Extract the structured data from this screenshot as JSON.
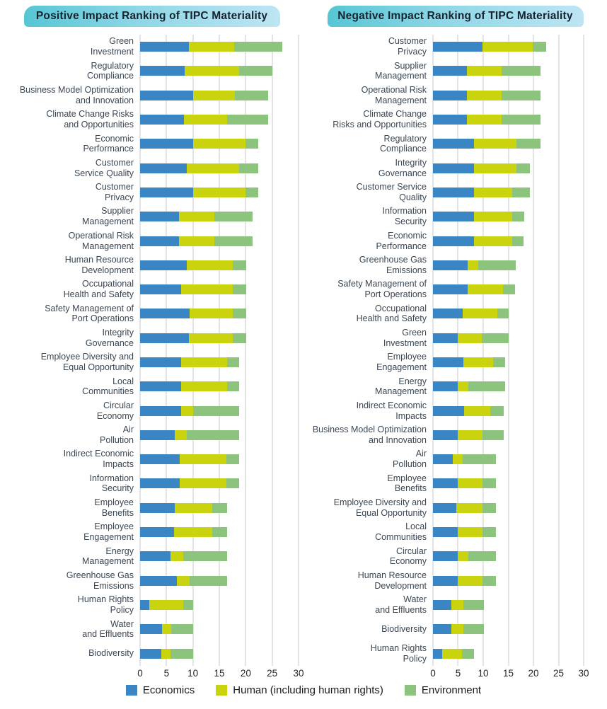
{
  "style": {
    "title_gradient_start": "#56C6D4",
    "title_gradient_end": "#BEE5F3",
    "title_text_color": "#14232F",
    "grid_color": "#CACACA",
    "label_color": "#3B4754",
    "axis_color": "#242424",
    "background": "#FFFFFF"
  },
  "chart_data": [
    {
      "type": "bar",
      "orientation": "horizontal",
      "stacked": true,
      "grid": true,
      "legend_position": "bottom",
      "title": "Positive Impact Ranking of TIPC Materiality",
      "xlim": [
        0,
        30
      ],
      "xticks": [
        0,
        5,
        10,
        15,
        20,
        25,
        30
      ],
      "categories": [
        "Green Investment",
        "Regulatory Compliance",
        "Business Model Optimization and Innovation",
        "Climate Change Risks and Opportunities",
        "Economic Performance",
        "Customer Service Quality",
        "Customer Privacy",
        "Supplier Management",
        "Operational Risk Management",
        "Human Resource Development",
        "Occupational Health and Safety",
        "Safety Management of Port Operations",
        "Integrity Governance",
        "Employee Diversity and Equal Opportunity",
        "Local Communities",
        "Circular Economy",
        "Air Pollution",
        "Indirect Economic Impacts",
        "Information Security",
        "Employee Benefits",
        "Employee Engagement",
        "Energy Management",
        "Greenhouse Gas Emissions",
        "Human Rights Policy",
        "Water and Effluents",
        "Biodiversity"
      ],
      "category_lines": [
        [
          "Green",
          "Investment"
        ],
        [
          "Regulatory",
          "Compliance"
        ],
        [
          "Business Model Optimization",
          "and Innovation"
        ],
        [
          "Climate Change Risks",
          "and Opportunities"
        ],
        [
          "Economic",
          "Performance"
        ],
        [
          "Customer",
          "Service Quality"
        ],
        [
          "Customer",
          "Privacy"
        ],
        [
          "Supplier",
          "Management"
        ],
        [
          "Operational Risk",
          "Management"
        ],
        [
          "Human Resource",
          "Development"
        ],
        [
          "Occupational",
          "Health and Safety"
        ],
        [
          "Safety Management of",
          "Port Operations"
        ],
        [
          "Integrity",
          "Governance"
        ],
        [
          "Employee Diversity and",
          "Equal Opportunity"
        ],
        [
          "Local",
          "Communities"
        ],
        [
          "Circular",
          "Economy"
        ],
        [
          "Air",
          "Pollution"
        ],
        [
          "Indirect Economic",
          "Impacts"
        ],
        [
          "Information",
          "Security"
        ],
        [
          "Employee",
          "Benefits"
        ],
        [
          "Employee",
          "Engagement"
        ],
        [
          "Energy",
          "Management"
        ],
        [
          "Greenhouse Gas",
          "Emissions"
        ],
        [
          "Human Rights",
          "Policy"
        ],
        [
          "Water",
          "and Effluents"
        ],
        [
          "Biodiversity"
        ]
      ],
      "series": [
        {
          "name": "Economics",
          "color": "#3A86C4",
          "values": [
            9.3,
            8.5,
            10.0,
            8.3,
            10.0,
            8.9,
            10.0,
            7.3,
            7.3,
            8.9,
            7.8,
            9.4,
            9.2,
            7.8,
            7.8,
            7.8,
            6.6,
            7.5,
            7.5,
            6.5,
            6.4,
            5.7,
            6.9,
            1.7,
            4.1,
            4.0
          ]
        },
        {
          "name": "Human (including human rights)",
          "color": "#C9D40E",
          "values": [
            8.5,
            10.2,
            7.9,
            8.2,
            10.0,
            9.8,
            10.0,
            6.7,
            6.7,
            8.7,
            9.8,
            8.2,
            8.4,
            8.7,
            8.7,
            2.2,
            2.3,
            8.8,
            8.8,
            7.2,
            7.3,
            2.5,
            2.5,
            6.5,
            1.8,
            1.8
          ]
        },
        {
          "name": "Environment",
          "color": "#8CC47D",
          "values": [
            9.1,
            6.4,
            6.3,
            7.8,
            2.4,
            3.7,
            2.4,
            7.3,
            7.3,
            2.5,
            2.5,
            2.5,
            2.5,
            2.3,
            2.3,
            8.8,
            9.9,
            2.5,
            2.5,
            2.8,
            2.8,
            8.3,
            7.1,
            1.9,
            4.2,
            4.3
          ]
        }
      ]
    },
    {
      "type": "bar",
      "orientation": "horizontal",
      "stacked": true,
      "grid": true,
      "legend_position": "bottom",
      "title": "Negative Impact Ranking of TIPC Materiality",
      "xlim": [
        0,
        30
      ],
      "xticks": [
        0,
        5,
        10,
        15,
        20,
        25,
        30
      ],
      "categories": [
        "Customer Privacy",
        "Supplier Management",
        "Operational Risk Management",
        "Climate Change Risks and Opportunities",
        "Regulatory Compliance",
        "Integrity Governance",
        "Customer Service Quality",
        "Information Security",
        "Economic Performance",
        "Greenhouse Gas Emissions",
        "Safety Management of Port Operations",
        "Occupational Health and Safety",
        "Green Investment",
        "Employee Engagement",
        "Energy Management",
        "Indirect Economic Impacts",
        "Business Model Optimization and Innovation",
        "Air Pollution",
        "Employee Benefits",
        "Employee Diversity and Equal Opportunity",
        "Local Communities",
        "Circular Economy",
        "Human Resource Development",
        "Water and Effluents",
        "Biodiversity",
        "Human Rights Policy"
      ],
      "category_lines": [
        [
          "Customer",
          "Privacy"
        ],
        [
          "Supplier",
          "Management"
        ],
        [
          "Operational Risk",
          "Management"
        ],
        [
          "Climate Change",
          "Risks and Opportunities"
        ],
        [
          "Regulatory",
          "Compliance"
        ],
        [
          "Integrity",
          "Governance"
        ],
        [
          "Customer Service",
          "Quality"
        ],
        [
          "Information",
          "Security"
        ],
        [
          "Economic",
          "Performance"
        ],
        [
          "Greenhouse Gas",
          "Emissions"
        ],
        [
          "Safety Management of",
          "Port Operations"
        ],
        [
          "Occupational",
          "Health and Safety"
        ],
        [
          "Green",
          "Investment"
        ],
        [
          "Employee",
          "Engagement"
        ],
        [
          "Energy",
          "Management"
        ],
        [
          "Indirect Economic",
          "Impacts"
        ],
        [
          "Business Model Optimization",
          "and Innovation"
        ],
        [
          "Air",
          "Pollution"
        ],
        [
          "Employee",
          "Benefits"
        ],
        [
          "Employee Diversity and",
          "Equal Opportunity"
        ],
        [
          "Local",
          "Communities"
        ],
        [
          "Circular",
          "Economy"
        ],
        [
          "Human Resource",
          "Development"
        ],
        [
          "Water",
          "and Effluents"
        ],
        [
          "Biodiversity"
        ],
        [
          "Human Rights",
          "Policy"
        ]
      ],
      "series": [
        {
          "name": "Economics",
          "color": "#3A86C4",
          "values": [
            9.9,
            6.7,
            6.7,
            6.7,
            8.2,
            8.2,
            8.2,
            8.2,
            8.1,
            6.9,
            6.9,
            5.9,
            4.9,
            6.0,
            4.9,
            6.2,
            4.9,
            3.9,
            4.9,
            4.7,
            4.9,
            4.9,
            5.0,
            3.7,
            3.7,
            1.9
          ]
        },
        {
          "name": "Human (including human rights)",
          "color": "#C9D40E",
          "values": [
            9.9,
            6.9,
            6.9,
            6.9,
            8.4,
            8.4,
            7.6,
            7.6,
            7.7,
            2.1,
            7.1,
            6.9,
            4.8,
            6.0,
            2.2,
            5.2,
            5.0,
            2.0,
            5.0,
            5.2,
            5.0,
            2.2,
            4.9,
            2.4,
            2.3,
            3.9
          ]
        },
        {
          "name": "Environment",
          "color": "#8CC47D",
          "values": [
            2.8,
            7.8,
            7.8,
            7.8,
            4.8,
            2.7,
            3.5,
            2.3,
            2.2,
            7.5,
            2.4,
            2.3,
            5.4,
            2.3,
            7.2,
            2.7,
            4.2,
            6.6,
            2.6,
            2.6,
            2.6,
            5.4,
            2.6,
            4.0,
            4.1,
            2.3
          ]
        }
      ]
    }
  ]
}
